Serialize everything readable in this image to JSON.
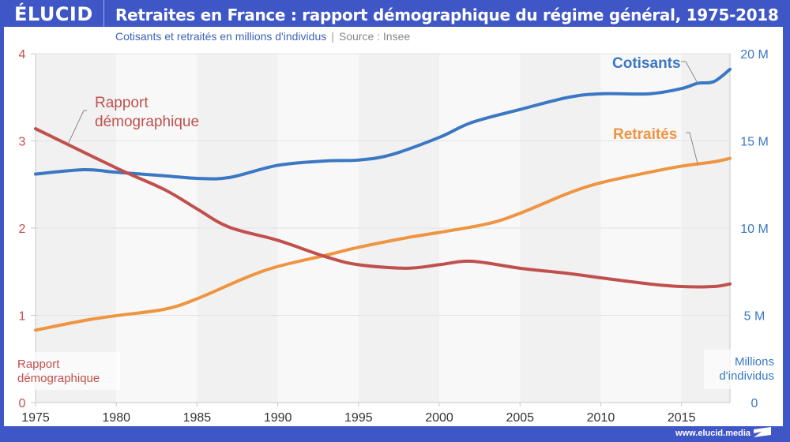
{
  "brand": {
    "logo_text": "ÉLUCID",
    "footer_url": "www.elucid.media"
  },
  "header": {
    "title": "Retraites en France : rapport démographique du régime général, 1975-2018",
    "subtitle": "Cotisants et retraités en millions d'individus",
    "separator": "|",
    "source": "Source : Insee"
  },
  "colors": {
    "brand_blue": "#3f57c6",
    "cotisants": "#3a78c3",
    "retraites": "#ef9440",
    "rapport": "#c0504d"
  },
  "chart_data": {
    "type": "line",
    "title": "Retraites en France : rapport démographique du régime général, 1975-2018",
    "subtitle": "Cotisants et retraités en millions d'individus | Source : Insee",
    "xlabel": "",
    "x_ticks": [
      "1975",
      "1980",
      "1985",
      "1990",
      "1995",
      "2000",
      "2005",
      "2010",
      "2015"
    ],
    "xlim": [
      1975,
      2018
    ],
    "y_left": {
      "label": "Rapport démographique",
      "ticks": [
        "0",
        "1",
        "2",
        "3",
        "4"
      ],
      "ylim": [
        0,
        4
      ]
    },
    "y_right": {
      "label": "Millions d'individus",
      "ticks": [
        "0",
        "5 M",
        "10 M",
        "15 M",
        "20 M"
      ],
      "ylim": [
        0,
        20
      ]
    },
    "grid": true,
    "series": [
      {
        "name": "Cotisants",
        "axis": "right",
        "label": "Cotisants",
        "x": [
          1975,
          1978,
          1980,
          1983,
          1985,
          1987,
          1990,
          1993,
          1995,
          1997,
          2000,
          2002,
          2005,
          2008,
          2010,
          2013,
          2015,
          2016,
          2017,
          2018
        ],
        "values": [
          13.1,
          13.35,
          13.2,
          13.0,
          12.85,
          12.9,
          13.6,
          13.85,
          13.9,
          14.2,
          15.2,
          16.05,
          16.8,
          17.5,
          17.7,
          17.7,
          18.0,
          18.3,
          18.4,
          19.1
        ]
      },
      {
        "name": "Retraités",
        "axis": "right",
        "label": "Retraités",
        "x": [
          1975,
          1978,
          1980,
          1983,
          1985,
          1988,
          1990,
          1993,
          1995,
          1998,
          2000,
          2003,
          2005,
          2008,
          2010,
          2013,
          2015,
          2017,
          2018
        ],
        "values": [
          4.15,
          4.7,
          4.98,
          5.35,
          5.95,
          7.15,
          7.8,
          8.45,
          8.9,
          9.45,
          9.75,
          10.25,
          10.85,
          12.0,
          12.6,
          13.2,
          13.55,
          13.8,
          14.0
        ]
      },
      {
        "name": "Rapport démographique",
        "axis": "left",
        "label": "Rapport démographique",
        "x": [
          1975,
          1980,
          1983,
          1985,
          1987,
          1990,
          1993,
          1995,
          1998,
          2000,
          2002,
          2005,
          2008,
          2010,
          2013,
          2015,
          2017,
          2018
        ],
        "values": [
          3.14,
          2.69,
          2.44,
          2.22,
          2.01,
          1.86,
          1.67,
          1.58,
          1.54,
          1.58,
          1.62,
          1.54,
          1.48,
          1.43,
          1.36,
          1.33,
          1.33,
          1.36
        ]
      }
    ],
    "annotations": [
      {
        "text": "Cotisants",
        "series": "Cotisants",
        "x": 2016
      },
      {
        "text": "Retraités",
        "series": "Retraités",
        "x": 2016
      },
      {
        "text": "Rapport démographique",
        "series": "Rapport démographique",
        "x": 1977
      }
    ]
  }
}
